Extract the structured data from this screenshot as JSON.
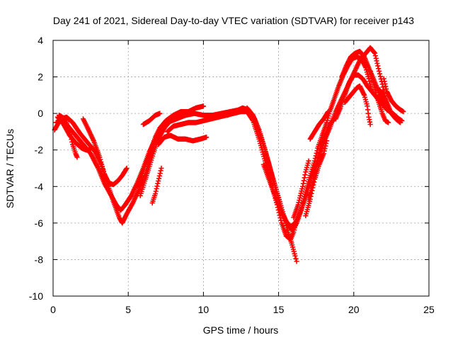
{
  "chart_data": {
    "type": "scatter",
    "title": "Day 241 of 2021, Sidereal Day-to-day VTEC variation (SDTVAR) for receiver p143",
    "xlabel": "GPS time / hours",
    "ylabel": "SDTVAR / TECUs",
    "xlim": [
      0,
      25
    ],
    "ylim": [
      -10,
      4
    ],
    "x_ticks": [
      0,
      5,
      10,
      15,
      20,
      25
    ],
    "y_ticks": [
      -10,
      -8,
      -6,
      -4,
      -2,
      0,
      2,
      4
    ],
    "grid": true,
    "marker": "+",
    "series": [
      {
        "name": "SDTVAR",
        "color": "#ff0000",
        "arcs": [
          [
            [
              0.1,
              -0.9
            ],
            [
              0.5,
              -0.3
            ],
            [
              0.9,
              -0.2
            ],
            [
              1.3,
              -0.5
            ],
            [
              1.8,
              -1.1
            ],
            [
              2.3,
              -1.6
            ],
            [
              2.8,
              -2.1
            ],
            [
              3.2,
              -2.8
            ],
            [
              3.6,
              -3.8
            ],
            [
              4.0,
              -4.8
            ],
            [
              4.4,
              -5.7
            ],
            [
              4.6,
              -6.0
            ],
            [
              4.9,
              -5.5
            ],
            [
              5.3,
              -4.9
            ],
            [
              5.7,
              -4.2
            ],
            [
              6.1,
              -3.4
            ],
            [
              6.4,
              -2.6
            ],
            [
              6.7,
              -1.8
            ],
            [
              7.0,
              -1.1
            ]
          ],
          [
            [
              0.2,
              -0.5
            ],
            [
              0.6,
              -0.4
            ],
            [
              1.0,
              -0.7
            ],
            [
              1.5,
              -1.2
            ],
            [
              2.0,
              -1.7
            ],
            [
              2.5,
              -2.2
            ],
            [
              3.0,
              -3.0
            ],
            [
              3.4,
              -3.8
            ],
            [
              3.8,
              -4.4
            ],
            [
              4.2,
              -5.0
            ],
            [
              4.5,
              -5.3
            ],
            [
              4.8,
              -5.0
            ],
            [
              5.2,
              -4.5
            ],
            [
              5.6,
              -3.8
            ],
            [
              6.0,
              -3.0
            ],
            [
              6.4,
              -2.1
            ],
            [
              6.8,
              -1.4
            ],
            [
              7.2,
              -0.8
            ],
            [
              7.6,
              -0.5
            ],
            [
              8.2,
              -0.3
            ],
            [
              8.8,
              -0.1
            ],
            [
              9.4,
              0.0
            ],
            [
              10.0,
              -0.1
            ],
            [
              10.6,
              -0.1
            ],
            [
              11.2,
              0.0
            ],
            [
              11.8,
              0.1
            ],
            [
              12.4,
              0.2
            ],
            [
              12.9,
              0.2
            ]
          ],
          [
            [
              0.4,
              -0.1
            ],
            [
              0.8,
              -0.3
            ],
            [
              1.1,
              -1.0
            ],
            [
              1.3,
              -1.7
            ],
            [
              1.5,
              -2.2
            ],
            [
              1.6,
              -2.4
            ]
          ],
          [
            [
              2.0,
              -0.3
            ],
            [
              2.3,
              -0.8
            ],
            [
              2.7,
              -1.5
            ],
            [
              3.1,
              -2.4
            ],
            [
              3.4,
              -3.3
            ],
            [
              3.7,
              -3.8
            ],
            [
              4.0,
              -3.9
            ],
            [
              4.3,
              -3.7
            ],
            [
              4.6,
              -3.4
            ],
            [
              4.9,
              -3.0
            ]
          ],
          [
            [
              0.3,
              -0.2
            ],
            [
              0.7,
              -0.6
            ],
            [
              1.1,
              -1.2
            ],
            [
              1.5,
              -1.6
            ],
            [
              1.9,
              -1.9
            ],
            [
              2.2,
              -2.0
            ],
            [
              2.5,
              -2.0
            ]
          ],
          [
            [
              5.8,
              -4.5
            ],
            [
              6.1,
              -3.7
            ],
            [
              6.4,
              -2.9
            ],
            [
              6.7,
              -2.1
            ],
            [
              7.0,
              -1.4
            ],
            [
              7.4,
              -0.8
            ],
            [
              7.8,
              -0.4
            ],
            [
              8.3,
              -0.2
            ],
            [
              8.8,
              -0.1
            ]
          ],
          [
            [
              6.6,
              -4.9
            ],
            [
              6.8,
              -4.4
            ],
            [
              7.0,
              -3.7
            ],
            [
              7.2,
              -3.0
            ]
          ],
          [
            [
              5.6,
              -4.0
            ],
            [
              5.9,
              -3.4
            ],
            [
              6.2,
              -2.7
            ],
            [
              6.5,
              -2.0
            ],
            [
              6.8,
              -1.3
            ],
            [
              7.1,
              -0.8
            ],
            [
              7.5,
              -0.4
            ],
            [
              8.0,
              -0.1
            ],
            [
              8.5,
              0.1
            ],
            [
              9.0,
              0.1
            ],
            [
              9.5,
              0.3
            ],
            [
              10.0,
              0.4
            ]
          ],
          [
            [
              6.0,
              -0.6
            ],
            [
              6.4,
              -0.4
            ],
            [
              6.8,
              -0.1
            ],
            [
              7.1,
              0.0
            ]
          ],
          [
            [
              7.0,
              -1.7
            ],
            [
              7.4,
              -1.3
            ],
            [
              7.8,
              -1.2
            ],
            [
              8.3,
              -1.4
            ],
            [
              8.8,
              -1.4
            ],
            [
              9.3,
              -1.5
            ],
            [
              9.8,
              -1.4
            ],
            [
              10.2,
              -1.3
            ]
          ],
          [
            [
              7.6,
              -1.0
            ],
            [
              8.0,
              -0.7
            ],
            [
              8.5,
              -0.6
            ],
            [
              9.0,
              -0.5
            ],
            [
              9.5,
              -0.5
            ],
            [
              10.0,
              -0.4
            ],
            [
              10.5,
              -0.3
            ],
            [
              11.0,
              -0.2
            ],
            [
              11.5,
              -0.1
            ],
            [
              12.0,
              0.0
            ],
            [
              12.5,
              0.1
            ],
            [
              12.9,
              0.1
            ],
            [
              13.3,
              -0.4
            ],
            [
              13.7,
              -1.4
            ],
            [
              14.1,
              -2.6
            ],
            [
              14.5,
              -3.8
            ],
            [
              14.9,
              -5.0
            ],
            [
              15.2,
              -6.0
            ],
            [
              15.5,
              -6.7
            ],
            [
              15.8,
              -6.9
            ],
            [
              16.0,
              -6.5
            ],
            [
              16.2,
              -5.9
            ]
          ],
          [
            [
              11.6,
              -0.1
            ],
            [
              12.1,
              0.1
            ],
            [
              12.6,
              0.3
            ],
            [
              13.0,
              0.2
            ],
            [
              13.4,
              -0.3
            ],
            [
              13.8,
              -1.2
            ],
            [
              14.2,
              -2.3
            ],
            [
              14.6,
              -3.5
            ],
            [
              15.0,
              -4.6
            ],
            [
              15.3,
              -5.5
            ],
            [
              15.6,
              -6.1
            ],
            [
              15.9,
              -6.4
            ],
            [
              16.2,
              -6.0
            ],
            [
              16.5,
              -5.3
            ],
            [
              16.8,
              -4.3
            ],
            [
              17.1,
              -3.4
            ],
            [
              17.4,
              -2.6
            ],
            [
              17.6,
              -1.9
            ],
            [
              17.9,
              -1.2
            ],
            [
              18.2,
              -0.5
            ],
            [
              18.4,
              0.1
            ],
            [
              18.7,
              0.8
            ],
            [
              19.0,
              1.5
            ],
            [
              19.3,
              2.1
            ],
            [
              19.6,
              2.6
            ],
            [
              19.9,
              3.0
            ],
            [
              20.2,
              3.1
            ],
            [
              20.5,
              3.0
            ],
            [
              20.8,
              2.5
            ],
            [
              21.0,
              1.9
            ],
            [
              21.2,
              1.2
            ]
          ],
          [
            [
              12.9,
              0.3
            ],
            [
              13.3,
              -0.1
            ],
            [
              13.7,
              -0.9
            ],
            [
              14.1,
              -2.0
            ],
            [
              14.5,
              -3.2
            ],
            [
              14.9,
              -4.4
            ],
            [
              15.3,
              -5.5
            ],
            [
              15.6,
              -6.4
            ],
            [
              15.9,
              -7.2
            ],
            [
              16.1,
              -7.8
            ],
            [
              16.2,
              -8.1
            ]
          ],
          [
            [
              14.0,
              -2.8
            ],
            [
              14.4,
              -3.7
            ],
            [
              14.8,
              -4.6
            ],
            [
              15.2,
              -5.4
            ],
            [
              15.5,
              -5.9
            ],
            [
              15.8,
              -6.2
            ],
            [
              16.1,
              -6.0
            ],
            [
              16.4,
              -5.5
            ],
            [
              16.8,
              -4.6
            ],
            [
              17.1,
              -3.8
            ],
            [
              17.4,
              -3.0
            ],
            [
              17.7,
              -2.3
            ],
            [
              18.0,
              -1.6
            ],
            [
              18.4,
              -0.8
            ],
            [
              18.8,
              0.1
            ],
            [
              19.2,
              0.8
            ],
            [
              19.6,
              1.5
            ],
            [
              20.0,
              2.2
            ],
            [
              20.4,
              2.9
            ],
            [
              20.8,
              3.3
            ],
            [
              21.1,
              3.6
            ],
            [
              21.4,
              3.3
            ],
            [
              21.6,
              2.6
            ],
            [
              21.9,
              1.6
            ],
            [
              22.1,
              0.8
            ]
          ],
          [
            [
              16.0,
              -5.7
            ],
            [
              16.3,
              -5.0
            ],
            [
              16.6,
              -4.0
            ],
            [
              16.8,
              -3.2
            ],
            [
              17.0,
              -2.6
            ]
          ],
          [
            [
              17.0,
              -4.7
            ],
            [
              17.3,
              -3.7
            ],
            [
              17.6,
              -2.6
            ],
            [
              17.8,
              -1.8
            ],
            [
              18.1,
              -1.2
            ],
            [
              18.4,
              -0.6
            ],
            [
              18.7,
              -0.3
            ]
          ],
          [
            [
              17.1,
              -1.4
            ],
            [
              17.4,
              -1.0
            ],
            [
              17.7,
              -0.6
            ],
            [
              18.0,
              -0.3
            ],
            [
              18.3,
              0.1
            ]
          ],
          [
            [
              16.8,
              -5.6
            ],
            [
              17.1,
              -4.7
            ],
            [
              17.4,
              -3.6
            ],
            [
              17.7,
              -2.8
            ],
            [
              18.0,
              -2.2
            ],
            [
              18.2,
              -1.5
            ]
          ],
          [
            [
              18.8,
              -0.3
            ],
            [
              19.1,
              0.3
            ],
            [
              19.4,
              1.0
            ],
            [
              19.7,
              1.7
            ],
            [
              20.0,
              2.1
            ],
            [
              20.3,
              2.1
            ],
            [
              20.6,
              1.9
            ],
            [
              20.9,
              1.5
            ],
            [
              21.2,
              1.2
            ],
            [
              21.5,
              0.9
            ],
            [
              21.8,
              0.6
            ],
            [
              22.1,
              0.3
            ]
          ],
          [
            [
              19.2,
              2.0
            ],
            [
              19.5,
              2.6
            ],
            [
              19.8,
              3.1
            ],
            [
              20.1,
              3.3
            ],
            [
              20.4,
              3.4
            ],
            [
              20.7,
              3.1
            ],
            [
              21.0,
              2.5
            ],
            [
              21.3,
              1.9
            ],
            [
              21.6,
              1.3
            ],
            [
              21.9,
              0.7
            ],
            [
              22.2,
              0.2
            ],
            [
              22.6,
              0.0
            ],
            [
              23.0,
              -0.3
            ],
            [
              23.2,
              -0.4
            ]
          ],
          [
            [
              19.4,
              0.6
            ],
            [
              19.7,
              0.9
            ],
            [
              20.0,
              1.2
            ],
            [
              20.2,
              1.4
            ],
            [
              20.4,
              1.5
            ],
            [
              20.7,
              1.0
            ],
            [
              20.9,
              0.4
            ],
            [
              21.0,
              -0.2
            ],
            [
              21.1,
              -0.6
            ]
          ],
          [
            [
              21.7,
              1.3
            ],
            [
              21.9,
              1.1
            ],
            [
              22.2,
              0.6
            ],
            [
              22.5,
              0.0
            ],
            [
              22.8,
              -0.3
            ],
            [
              23.1,
              -0.5
            ]
          ],
          [
            [
              21.1,
              2.3
            ],
            [
              21.3,
              1.7
            ],
            [
              21.5,
              1.0
            ],
            [
              21.7,
              0.5
            ],
            [
              21.9,
              0.0
            ],
            [
              22.1,
              -0.4
            ],
            [
              22.3,
              -0.5
            ]
          ],
          [
            [
              22.0,
              1.9
            ],
            [
              22.2,
              1.2
            ],
            [
              22.5,
              0.7
            ],
            [
              22.8,
              0.4
            ],
            [
              23.1,
              0.2
            ],
            [
              23.3,
              0.1
            ]
          ]
        ]
      }
    ]
  }
}
